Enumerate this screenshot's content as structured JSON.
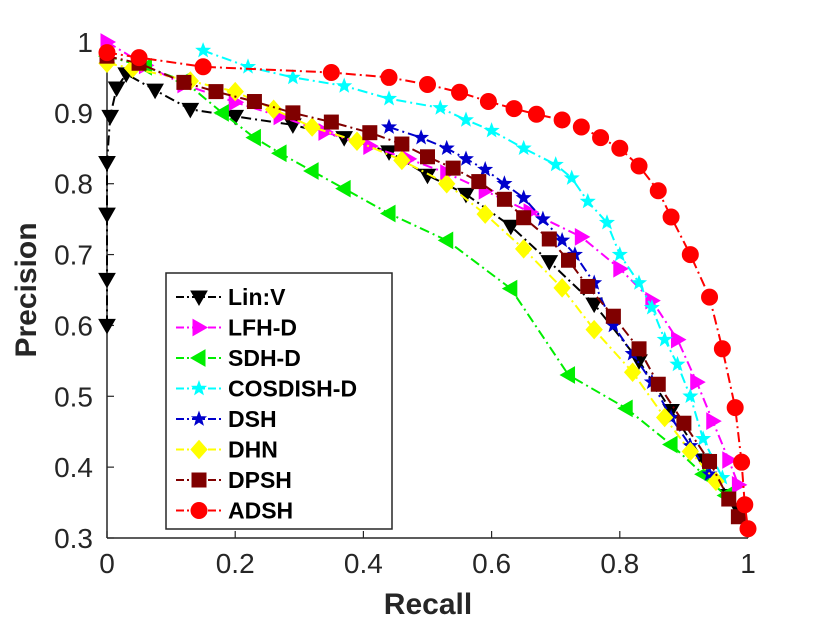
{
  "chart_data": {
    "type": "line",
    "xlabel": "Recall",
    "ylabel": "Precision",
    "xlim": [
      0,
      1
    ],
    "ylim": [
      0.3,
      1
    ],
    "xticks": [
      "0",
      "0.2",
      "0.4",
      "0.6",
      "0.8",
      "1"
    ],
    "xtick_values": [
      0,
      0.2,
      0.4,
      0.6,
      0.8,
      1
    ],
    "yticks": [
      "0.3",
      "0.4",
      "0.5",
      "0.6",
      "0.7",
      "0.8",
      "0.9",
      "1"
    ],
    "ytick_values": [
      0.3,
      0.4,
      0.5,
      0.6,
      0.7,
      0.8,
      0.9,
      1
    ],
    "grid": false,
    "legend_position": "bottom-left",
    "series": [
      {
        "name": "Lin:V",
        "color": "#000000",
        "marker": "triangle-down",
        "points": [
          [
            0.0,
            0.6
          ],
          [
            0.0,
            0.665
          ],
          [
            0.0,
            0.757
          ],
          [
            0.0,
            0.83
          ],
          [
            0.005,
            0.895
          ],
          [
            0.015,
            0.935
          ],
          [
            0.03,
            0.955
          ],
          [
            0.075,
            0.932
          ],
          [
            0.13,
            0.905
          ],
          [
            0.2,
            0.895
          ],
          [
            0.29,
            0.883
          ],
          [
            0.37,
            0.865
          ],
          [
            0.44,
            0.845
          ],
          [
            0.5,
            0.812
          ],
          [
            0.56,
            0.785
          ],
          [
            0.63,
            0.74
          ],
          [
            0.69,
            0.69
          ],
          [
            0.76,
            0.63
          ],
          [
            0.83,
            0.55
          ],
          [
            0.88,
            0.48
          ],
          [
            0.93,
            0.41
          ],
          [
            0.97,
            0.36
          ],
          [
            0.985,
            0.34
          ]
        ]
      },
      {
        "name": "LFH-D",
        "color": "#ff00ff",
        "marker": "triangle-right",
        "points": [
          [
            0.0,
            1.0
          ],
          [
            0.06,
            0.967
          ],
          [
            0.12,
            0.94
          ],
          [
            0.2,
            0.915
          ],
          [
            0.27,
            0.895
          ],
          [
            0.34,
            0.873
          ],
          [
            0.41,
            0.853
          ],
          [
            0.47,
            0.835
          ],
          [
            0.53,
            0.815
          ],
          [
            0.59,
            0.79
          ],
          [
            0.66,
            0.76
          ],
          [
            0.74,
            0.725
          ],
          [
            0.8,
            0.68
          ],
          [
            0.85,
            0.635
          ],
          [
            0.89,
            0.58
          ],
          [
            0.92,
            0.52
          ],
          [
            0.945,
            0.465
          ],
          [
            0.97,
            0.41
          ],
          [
            0.985,
            0.375
          ]
        ]
      },
      {
        "name": "SDH-D",
        "color": "#00ee00",
        "marker": "triangle-left",
        "points": [
          [
            0.0,
            0.98
          ],
          [
            0.06,
            0.965
          ],
          [
            0.12,
            0.945
          ],
          [
            0.18,
            0.9
          ],
          [
            0.23,
            0.865
          ],
          [
            0.27,
            0.843
          ],
          [
            0.32,
            0.818
          ],
          [
            0.37,
            0.793
          ],
          [
            0.44,
            0.758
          ],
          [
            0.53,
            0.72
          ],
          [
            0.63,
            0.652
          ],
          [
            0.72,
            0.53
          ],
          [
            0.81,
            0.483
          ],
          [
            0.88,
            0.432
          ],
          [
            0.93,
            0.39
          ],
          [
            0.965,
            0.36
          ]
        ]
      },
      {
        "name": "COSDISH-D",
        "color": "#00ffff",
        "marker": "star",
        "points": [
          [
            0.15,
            0.988
          ],
          [
            0.22,
            0.965
          ],
          [
            0.29,
            0.95
          ],
          [
            0.37,
            0.938
          ],
          [
            0.44,
            0.92
          ],
          [
            0.52,
            0.907
          ],
          [
            0.56,
            0.89
          ],
          [
            0.6,
            0.875
          ],
          [
            0.65,
            0.85
          ],
          [
            0.7,
            0.827
          ],
          [
            0.725,
            0.808
          ],
          [
            0.75,
            0.775
          ],
          [
            0.78,
            0.745
          ],
          [
            0.8,
            0.7
          ],
          [
            0.83,
            0.66
          ],
          [
            0.85,
            0.625
          ],
          [
            0.87,
            0.58
          ],
          [
            0.89,
            0.545
          ],
          [
            0.91,
            0.5
          ],
          [
            0.93,
            0.44
          ],
          [
            0.96,
            0.385
          ]
        ]
      },
      {
        "name": "DSH",
        "color": "#0000cc",
        "marker": "star",
        "points": [
          [
            0.44,
            0.88
          ],
          [
            0.49,
            0.865
          ],
          [
            0.53,
            0.85
          ],
          [
            0.56,
            0.835
          ],
          [
            0.59,
            0.82
          ],
          [
            0.62,
            0.8
          ],
          [
            0.65,
            0.78
          ],
          [
            0.68,
            0.75
          ],
          [
            0.71,
            0.72
          ],
          [
            0.73,
            0.7
          ],
          [
            0.76,
            0.66
          ],
          [
            0.79,
            0.6
          ],
          [
            0.82,
            0.56
          ],
          [
            0.85,
            0.52
          ],
          [
            0.88,
            0.47
          ],
          [
            0.91,
            0.43
          ],
          [
            0.94,
            0.39
          ]
        ]
      },
      {
        "name": "DHN",
        "color": "#ffff00",
        "marker": "diamond",
        "points": [
          [
            0.0,
            0.97
          ],
          [
            0.04,
            0.963
          ],
          [
            0.13,
            0.945
          ],
          [
            0.2,
            0.93
          ],
          [
            0.26,
            0.905
          ],
          [
            0.32,
            0.88
          ],
          [
            0.39,
            0.86
          ],
          [
            0.46,
            0.833
          ],
          [
            0.53,
            0.8
          ],
          [
            0.59,
            0.757
          ],
          [
            0.65,
            0.708
          ],
          [
            0.71,
            0.653
          ],
          [
            0.76,
            0.594
          ],
          [
            0.82,
            0.534
          ],
          [
            0.87,
            0.47
          ],
          [
            0.91,
            0.422
          ],
          [
            0.95,
            0.38
          ]
        ]
      },
      {
        "name": "DPSH",
        "color": "#800000",
        "marker": "square",
        "points": [
          [
            0.0,
            0.98
          ],
          [
            0.05,
            0.97
          ],
          [
            0.12,
            0.943
          ],
          [
            0.17,
            0.93
          ],
          [
            0.23,
            0.916
          ],
          [
            0.29,
            0.9
          ],
          [
            0.35,
            0.887
          ],
          [
            0.41,
            0.872
          ],
          [
            0.46,
            0.856
          ],
          [
            0.5,
            0.838
          ],
          [
            0.54,
            0.822
          ],
          [
            0.58,
            0.803
          ],
          [
            0.62,
            0.778
          ],
          [
            0.65,
            0.752
          ],
          [
            0.69,
            0.722
          ],
          [
            0.72,
            0.692
          ],
          [
            0.75,
            0.655
          ],
          [
            0.79,
            0.613
          ],
          [
            0.83,
            0.567
          ],
          [
            0.86,
            0.517
          ],
          [
            0.9,
            0.462
          ],
          [
            0.94,
            0.408
          ],
          [
            0.97,
            0.355
          ],
          [
            0.985,
            0.33
          ]
        ]
      },
      {
        "name": "ADSH",
        "color": "#ff0000",
        "marker": "circle",
        "points": [
          [
            0.0,
            0.985
          ],
          [
            0.05,
            0.978
          ],
          [
            0.15,
            0.965
          ],
          [
            0.35,
            0.957
          ],
          [
            0.44,
            0.95
          ],
          [
            0.5,
            0.94
          ],
          [
            0.55,
            0.929
          ],
          [
            0.595,
            0.916
          ],
          [
            0.635,
            0.906
          ],
          [
            0.67,
            0.898
          ],
          [
            0.71,
            0.89
          ],
          [
            0.74,
            0.88
          ],
          [
            0.77,
            0.865
          ],
          [
            0.8,
            0.85
          ],
          [
            0.83,
            0.825
          ],
          [
            0.86,
            0.79
          ],
          [
            0.88,
            0.753
          ],
          [
            0.91,
            0.7
          ],
          [
            0.94,
            0.64
          ],
          [
            0.96,
            0.567
          ],
          [
            0.98,
            0.484
          ],
          [
            0.99,
            0.407
          ],
          [
            0.995,
            0.347
          ],
          [
            1.0,
            0.313
          ]
        ]
      }
    ]
  }
}
